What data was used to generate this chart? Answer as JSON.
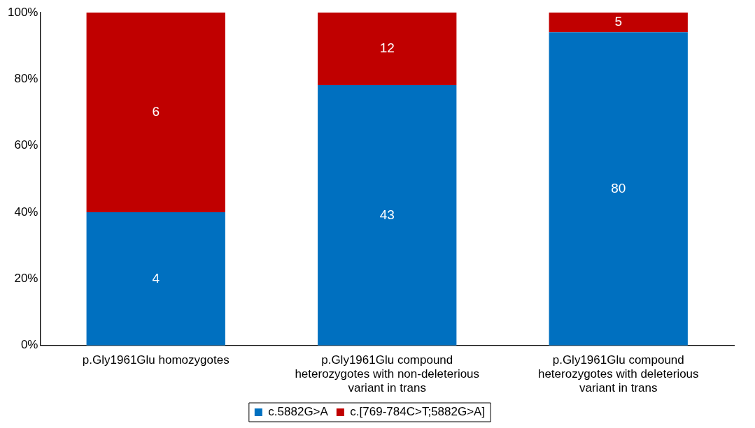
{
  "chart_data": {
    "type": "bar",
    "stacked": true,
    "categories": [
      "p.Gly1961Glu homozygotes",
      "p.Gly1961Glu compound heterozygotes with non-deleterious variant in trans",
      "p.Gly1961Glu compound heterozygotes with deleterious variant in trans"
    ],
    "series": [
      {
        "name": "c.5882G>A",
        "color": "#0070c0",
        "values": [
          40,
          78.2,
          94.1
        ]
      },
      {
        "name": "c.[769-784C>T;5882G>A]",
        "color": "#c00000",
        "values": [
          60,
          21.8,
          5.9
        ]
      }
    ],
    "annotations": [
      "4",
      "6",
      "43",
      "12",
      "80",
      "5"
    ],
    "ylim": [
      0,
      100
    ],
    "yticks": [
      {
        "value": 0,
        "label": "0%"
      },
      {
        "value": 20,
        "label": "20%"
      },
      {
        "value": 40,
        "label": "40%"
      },
      {
        "value": 60,
        "label": "60%"
      },
      {
        "value": 80,
        "label": "80%"
      },
      {
        "value": 100,
        "label": "100%"
      }
    ],
    "grid": false,
    "legend": "bottom"
  }
}
